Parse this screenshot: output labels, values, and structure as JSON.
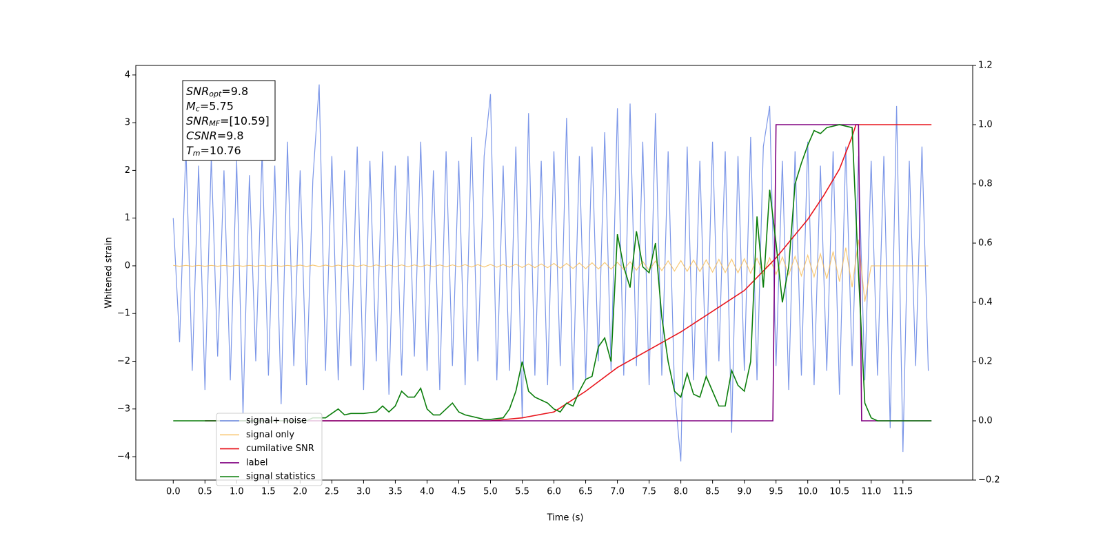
{
  "chart_data": {
    "type": "line",
    "xlabel": "Time (s)",
    "ylabel": "Whitened strain",
    "xlim": [
      -0.59,
      12.6
    ],
    "ylim": [
      -4.49,
      4.2
    ],
    "y2lim": [
      -0.2,
      1.2
    ],
    "xticks": [
      {
        "value": 0,
        "label": "0.0"
      },
      {
        "value": 0.5,
        "label": "0.5"
      },
      {
        "value": 1,
        "label": "1.0"
      },
      {
        "value": 1.5,
        "label": "1.5"
      },
      {
        "value": 2,
        "label": "2.0"
      },
      {
        "value": 2.5,
        "label": "2.5"
      },
      {
        "value": 3,
        "label": "3.0"
      },
      {
        "value": 3.5,
        "label": "3.5"
      },
      {
        "value": 4,
        "label": "4.0"
      },
      {
        "value": 4.5,
        "label": "4.5"
      },
      {
        "value": 5,
        "label": "5.0"
      },
      {
        "value": 5.5,
        "label": "5.5"
      },
      {
        "value": 6,
        "label": "6.0"
      },
      {
        "value": 6.5,
        "label": "6.5"
      },
      {
        "value": 7,
        "label": "7.0"
      },
      {
        "value": 7.5,
        "label": "7.5"
      },
      {
        "value": 8,
        "label": "8.0"
      },
      {
        "value": 8.5,
        "label": "8.5"
      },
      {
        "value": 9,
        "label": "9.0"
      },
      {
        "value": 9.5,
        "label": "9.5"
      },
      {
        "value": 10,
        "label": "10.0"
      },
      {
        "value": 10.5,
        "label": "10.5"
      },
      {
        "value": 11,
        "label": "11.0"
      },
      {
        "value": 11.5,
        "label": "11.5"
      }
    ],
    "yticks": [
      {
        "value": -4,
        "label": "−4"
      },
      {
        "value": -3,
        "label": "−3"
      },
      {
        "value": -2,
        "label": "−2"
      },
      {
        "value": -1,
        "label": "−1"
      },
      0,
      1,
      2,
      3,
      4
    ],
    "y2ticks": [
      {
        "value": -0.2,
        "label": "−0.2"
      },
      {
        "value": 0,
        "label": "0.0"
      },
      {
        "value": 0.2,
        "label": "0.2"
      },
      {
        "value": 0.4,
        "label": "0.4"
      },
      {
        "value": 0.6,
        "label": "0.6"
      },
      {
        "value": 0.8,
        "label": "0.8"
      },
      {
        "value": 1,
        "label": "1.0"
      },
      {
        "value": 1.2,
        "label": "1.2"
      }
    ],
    "legend": "lower left",
    "annotation": [
      {
        "name": "SNR",
        "sub": "opt",
        "text": "=9.8"
      },
      {
        "name": "M",
        "sub": "c",
        "text": "=5.75"
      },
      {
        "name": "SNR",
        "sub": "MF",
        "text": "=[10.59]"
      },
      {
        "name": "CSNR",
        "sub": null,
        "text": "=9.8"
      },
      {
        "name": "T",
        "sub": "m",
        "text": "=10.76"
      }
    ],
    "x": [
      0.0,
      0.1,
      0.2,
      0.3,
      0.4,
      0.5,
      0.6,
      0.7,
      0.8,
      0.9,
      1.0,
      1.1,
      1.2,
      1.3,
      1.4,
      1.5,
      1.6,
      1.7,
      1.8,
      1.9,
      2.0,
      2.1,
      2.2,
      2.3,
      2.4,
      2.5,
      2.6,
      2.7,
      2.8,
      2.9,
      3.0,
      3.1,
      3.2,
      3.3,
      3.4,
      3.5,
      3.6,
      3.7,
      3.8,
      3.9,
      4.0,
      4.1,
      4.2,
      4.3,
      4.4,
      4.5,
      4.6,
      4.7,
      4.8,
      4.9,
      5.0,
      5.1,
      5.2,
      5.3,
      5.4,
      5.5,
      5.6,
      5.7,
      5.8,
      5.9,
      6.0,
      6.1,
      6.2,
      6.3,
      6.4,
      6.5,
      6.6,
      6.7,
      6.8,
      6.9,
      7.0,
      7.1,
      7.2,
      7.3,
      7.4,
      7.5,
      7.6,
      7.7,
      7.8,
      7.9,
      8.0,
      8.1,
      8.2,
      8.3,
      8.4,
      8.5,
      8.6,
      8.7,
      8.8,
      8.9,
      9.0,
      9.1,
      9.2,
      9.3,
      9.4,
      9.5,
      9.6,
      9.7,
      9.8,
      9.9,
      10.0,
      10.1,
      10.2,
      10.3,
      10.4,
      10.5,
      10.6,
      10.7,
      10.8,
      10.9,
      11.0,
      11.1,
      11.2,
      11.3,
      11.4,
      11.5,
      11.6,
      11.7,
      11.8,
      11.9
    ],
    "series": [
      {
        "name": "signal+ noise",
        "color": "#6d8be6",
        "values": [
          1.0,
          -1.6,
          2.5,
          -2.2,
          2.1,
          -2.6,
          2.3,
          -1.9,
          2.0,
          -2.4,
          2.2,
          -3.1,
          1.9,
          -2.0,
          2.4,
          -2.3,
          2.1,
          -2.9,
          2.6,
          -2.1,
          2.0,
          -2.5,
          1.8,
          3.8,
          -2.2,
          2.3,
          -2.4,
          2.0,
          -2.1,
          2.5,
          -2.6,
          2.2,
          -2.0,
          2.4,
          -2.7,
          2.1,
          -2.3,
          2.3,
          -1.9,
          2.6,
          -2.2,
          2.0,
          -2.6,
          2.4,
          -2.1,
          2.2,
          -2.5,
          2.7,
          -2.0,
          2.3,
          3.6,
          -2.4,
          2.1,
          -2.2,
          2.5,
          -3.2,
          3.2,
          -2.3,
          2.2,
          -2.5,
          2.4,
          -2.1,
          3.1,
          -2.6,
          2.3,
          -2.4,
          2.5,
          -2.0,
          2.8,
          -2.2,
          3.3,
          -2.3,
          3.4,
          -2.1,
          2.6,
          -2.5,
          3.2,
          -2.3,
          2.4,
          -2.6,
          -4.1,
          2.5,
          -2.4,
          2.2,
          -2.3,
          2.6,
          -2.0,
          2.4,
          -3.5,
          2.3,
          -2.2,
          2.7,
          -2.4,
          2.5,
          3.35,
          -2.1,
          2.2,
          -2.6,
          2.4,
          -2.3,
          2.6,
          -2.5,
          2.1,
          -2.2,
          2.4,
          -2.7,
          2.5,
          -2.1,
          2.3,
          -2.4,
          2.2,
          -2.3,
          2.3,
          -3.4,
          3.35,
          -3.9,
          2.2,
          -2.1,
          2.5,
          -2.2
        ]
      },
      {
        "name": "signal only",
        "color": "#f5b74a",
        "values": [
          0.01,
          -0.01,
          0.01,
          -0.01,
          0.01,
          -0.01,
          0.01,
          -0.01,
          0.01,
          -0.01,
          0.01,
          -0.01,
          0.01,
          -0.01,
          0.01,
          -0.01,
          0.01,
          -0.01,
          0.01,
          -0.01,
          0.015,
          -0.015,
          0.015,
          -0.015,
          0.015,
          -0.015,
          0.015,
          -0.015,
          0.015,
          -0.015,
          0.02,
          -0.02,
          0.02,
          -0.02,
          0.02,
          -0.02,
          0.02,
          -0.02,
          0.02,
          -0.02,
          0.02,
          -0.02,
          0.02,
          -0.02,
          0.02,
          -0.02,
          0.025,
          -0.025,
          0.025,
          -0.025,
          0.03,
          -0.03,
          0.03,
          -0.03,
          0.035,
          -0.035,
          0.04,
          -0.04,
          0.04,
          -0.04,
          0.05,
          -0.05,
          0.05,
          -0.055,
          0.06,
          -0.06,
          0.065,
          -0.065,
          0.07,
          -0.07,
          0.075,
          -0.08,
          0.085,
          -0.09,
          0.09,
          -0.095,
          0.1,
          -0.1,
          0.105,
          -0.11,
          0.11,
          -0.115,
          0.12,
          -0.12,
          0.125,
          -0.13,
          0.135,
          -0.14,
          0.14,
          -0.145,
          0.15,
          -0.155,
          0.16,
          -0.165,
          0.17,
          -0.18,
          0.185,
          -0.19,
          0.2,
          -0.21,
          0.22,
          -0.23,
          0.25,
          -0.27,
          0.3,
          -0.33,
          0.38,
          -0.45,
          0.55,
          -0.75,
          0,
          0,
          0,
          0,
          0,
          0,
          0,
          0,
          0,
          0
        ]
      },
      {
        "name": "cumilative SNR",
        "color": "#e8141c",
        "axis": "y2",
        "x": [
          0.5,
          5.0,
          5.5,
          6.0,
          6.5,
          7.0,
          7.5,
          8.0,
          8.5,
          9.0,
          9.5,
          10.0,
          10.25,
          10.5,
          10.7,
          10.76,
          11.95
        ],
        "values": [
          0,
          0,
          0.01,
          0.03,
          0.1,
          0.18,
          0.24,
          0.3,
          0.37,
          0.44,
          0.55,
          0.68,
          0.76,
          0.85,
          0.96,
          1.0,
          1.0
        ]
      },
      {
        "name": "label",
        "color": "#800080",
        "axis": "y2",
        "x": [
          0.5,
          9.45,
          9.5,
          10.8,
          10.85,
          11.95
        ],
        "values": [
          0,
          0,
          1,
          1,
          0,
          0
        ]
      },
      {
        "name": "signal statistics",
        "color": "#0a7d0a",
        "axis": "y2",
        "x": [
          0.0,
          2.1,
          2.2,
          2.4,
          2.6,
          2.7,
          2.8,
          3.0,
          3.2,
          3.3,
          3.4,
          3.5,
          3.6,
          3.7,
          3.8,
          3.9,
          4.0,
          4.1,
          4.2,
          4.3,
          4.4,
          4.5,
          4.6,
          4.7,
          4.8,
          4.9,
          5.0,
          5.2,
          5.3,
          5.4,
          5.5,
          5.6,
          5.7,
          5.8,
          5.9,
          6.0,
          6.1,
          6.2,
          6.3,
          6.4,
          6.5,
          6.6,
          6.7,
          6.8,
          6.9,
          7.0,
          7.1,
          7.2,
          7.3,
          7.4,
          7.5,
          7.6,
          7.7,
          7.8,
          7.9,
          8.0,
          8.1,
          8.2,
          8.3,
          8.4,
          8.5,
          8.6,
          8.7,
          8.8,
          8.9,
          9.0,
          9.1,
          9.2,
          9.3,
          9.4,
          9.5,
          9.6,
          9.7,
          9.8,
          9.9,
          10.0,
          10.1,
          10.2,
          10.3,
          10.5,
          10.7,
          10.8,
          10.9,
          11.0,
          11.1,
          11.95
        ],
        "values": [
          0,
          0,
          0.01,
          0.01,
          0.04,
          0.02,
          0.025,
          0.025,
          0.03,
          0.05,
          0.03,
          0.05,
          0.1,
          0.08,
          0.08,
          0.11,
          0.04,
          0.02,
          0.02,
          0.04,
          0.06,
          0.03,
          0.02,
          0.015,
          0.01,
          0.005,
          0.005,
          0.01,
          0.04,
          0.1,
          0.2,
          0.1,
          0.08,
          0.07,
          0.06,
          0.04,
          0.03,
          0.06,
          0.05,
          0.1,
          0.14,
          0.15,
          0.25,
          0.28,
          0.2,
          0.63,
          0.52,
          0.45,
          0.64,
          0.52,
          0.5,
          0.6,
          0.35,
          0.2,
          0.1,
          0.08,
          0.16,
          0.09,
          0.08,
          0.15,
          0.1,
          0.05,
          0.05,
          0.17,
          0.12,
          0.1,
          0.2,
          0.69,
          0.45,
          0.78,
          0.6,
          0.4,
          0.52,
          0.8,
          0.87,
          0.93,
          0.98,
          0.97,
          0.99,
          1.0,
          0.99,
          0.5,
          0.06,
          0.01,
          0,
          0
        ]
      }
    ]
  }
}
